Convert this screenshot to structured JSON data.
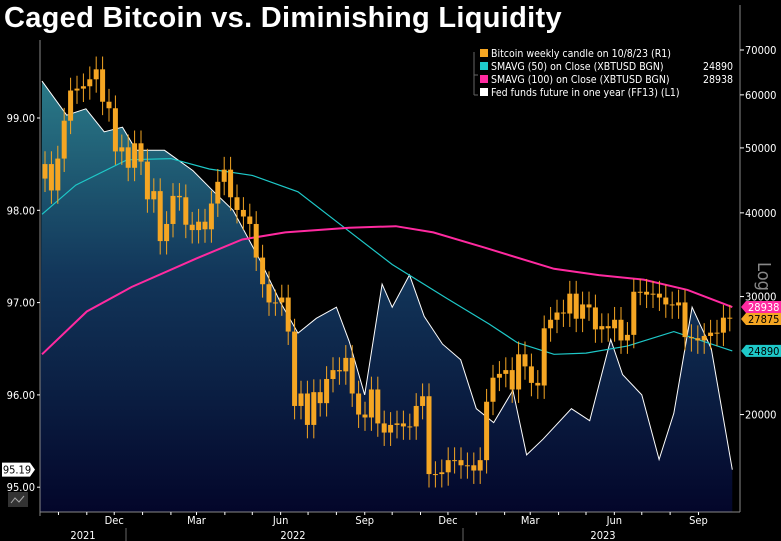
{
  "chart_data": {
    "type": "line",
    "title": "Caged Bitcoin vs. Diminishing Liquidity",
    "left_axis": {
      "ticks": [
        "99.00",
        "98.00",
        "97.00",
        "96.00",
        "95.00"
      ],
      "range": [
        94.7,
        99.85
      ],
      "last_value": "95.19"
    },
    "right_axis": {
      "scale": "log",
      "label": "Log",
      "ticks": [
        "70000",
        "60000",
        "50000",
        "40000",
        "30000",
        "20000"
      ],
      "range": [
        13500,
        74000
      ]
    },
    "x_axis": {
      "months": [
        {
          "label": "Dec",
          "date": "2021-12-01"
        },
        {
          "label": "Mar",
          "date": "2022-03-01"
        },
        {
          "label": "Jun",
          "date": "2022-06-01"
        },
        {
          "label": "Sep",
          "date": "2022-09-01"
        },
        {
          "label": "Dec",
          "date": "2022-12-01"
        },
        {
          "label": "Mar",
          "date": "2023-03-01"
        },
        {
          "label": "Jun",
          "date": "2023-06-01"
        },
        {
          "label": "Sep",
          "date": "2023-09-01"
        }
      ],
      "years": [
        "2021",
        "2022",
        "2023"
      ]
    },
    "legend": {
      "placement": "top-right",
      "items": [
        {
          "label": "Bitcoin weekly candle on 10/8/23 (R1)",
          "value": "",
          "color": "#f5a623"
        },
        {
          "label": "SMAVG (50)  on Close (XBTUSD BGN)",
          "value": "24890",
          "color": "#1ec8c8"
        },
        {
          "label": "SMAVG (100)  on Close (XBTUSD BGN)",
          "value": "28938",
          "color": "#ff2aa0"
        },
        {
          "label": "Fed funds future in one year (FF13) (L1)",
          "value": "",
          "color": "#ffffff"
        }
      ]
    },
    "right_labels": [
      {
        "value": "28938",
        "color": "#ff2aa0"
      },
      {
        "value": "27875",
        "color": "#f5a623"
      },
      {
        "value": "24890",
        "color": "#1ec8c8"
      }
    ],
    "bitcoin": {
      "start_week": "2021-09-13",
      "first_open": 45000,
      "closes": [
        47300,
        43200,
        48200,
        54900,
        60900,
        61300,
        61800,
        63300,
        65500,
        58600,
        57300,
        49400,
        50100,
        46700,
        50800,
        47700,
        41900,
        43100,
        36300,
        38500,
        42400,
        42200,
        38400,
        37700,
        38800,
        37800,
        41300,
        44500,
        46400,
        42200,
        40400,
        39500,
        38500,
        34300,
        31300,
        29400,
        29400,
        29900,
        26600,
        20600,
        21500,
        19300,
        21600,
        20800,
        22600,
        23300,
        23200,
        24300,
        21500,
        20000,
        19800,
        21800,
        19400,
        18800,
        19300,
        19400,
        19200,
        19200,
        20600,
        21300,
        16300,
        16300,
        16400,
        17100,
        17100,
        16800,
        16800,
        16500,
        17100,
        20900,
        22700,
        23000,
        23300,
        21800,
        24600,
        23600,
        22300,
        22100,
        26900,
        27700,
        28400,
        28300,
        30300,
        27800,
        29200,
        28900,
        26800,
        27100,
        26900,
        27700,
        25800,
        26300,
        30500,
        30500,
        30200,
        30300,
        29900,
        29200,
        29100,
        29400,
        26100,
        26000,
        25800,
        26200,
        26500,
        26500,
        27900,
        27875
      ]
    },
    "sma50": [
      [
        "2021-09-13",
        39800
      ],
      [
        "2021-10-20",
        44000
      ],
      [
        "2021-12-15",
        48000
      ],
      [
        "2022-02-01",
        48200
      ],
      [
        "2022-03-15",
        46500
      ],
      [
        "2022-05-01",
        45500
      ],
      [
        "2022-06-20",
        43000
      ],
      [
        "2022-08-10",
        38000
      ],
      [
        "2022-10-01",
        33500
      ],
      [
        "2022-11-30",
        29800
      ],
      [
        "2023-01-15",
        27300
      ],
      [
        "2023-02-15",
        25600
      ],
      [
        "2023-03-27",
        24600
      ],
      [
        "2023-05-01",
        24700
      ],
      [
        "2023-06-15",
        25300
      ],
      [
        "2023-08-05",
        26600
      ],
      [
        "2023-10-08",
        24890
      ]
    ],
    "sma100": [
      [
        "2021-09-13",
        24600
      ],
      [
        "2021-11-01",
        28500
      ],
      [
        "2021-12-20",
        31000
      ],
      [
        "2022-03-01",
        34200
      ],
      [
        "2022-04-20",
        36500
      ],
      [
        "2022-06-06",
        37400
      ],
      [
        "2022-08-15",
        38000
      ],
      [
        "2022-10-05",
        38200
      ],
      [
        "2022-11-15",
        37400
      ],
      [
        "2023-01-10",
        35500
      ],
      [
        "2023-03-27",
        33000
      ],
      [
        "2023-05-15",
        32300
      ],
      [
        "2023-07-03",
        31800
      ],
      [
        "2023-08-20",
        30700
      ],
      [
        "2023-10-08",
        28938
      ]
    ],
    "fed_funds": [
      [
        "2021-09-13",
        99.4
      ],
      [
        "2021-10-10",
        99.03
      ],
      [
        "2021-10-31",
        99.1
      ],
      [
        "2021-11-20",
        98.85
      ],
      [
        "2021-12-10",
        98.9
      ],
      [
        "2021-12-25",
        98.65
      ],
      [
        "2022-01-25",
        98.65
      ],
      [
        "2022-02-25",
        98.43
      ],
      [
        "2022-03-20",
        98.2
      ],
      [
        "2022-04-10",
        98.0
      ],
      [
        "2022-05-10",
        97.45
      ],
      [
        "2022-06-01",
        97.0
      ],
      [
        "2022-06-20",
        96.67
      ],
      [
        "2022-07-10",
        96.83
      ],
      [
        "2022-08-01",
        96.95
      ],
      [
        "2022-08-15",
        96.58
      ],
      [
        "2022-09-01",
        96.0
      ],
      [
        "2022-09-20",
        97.2
      ],
      [
        "2022-10-01",
        96.95
      ],
      [
        "2022-10-20",
        97.3
      ],
      [
        "2022-11-05",
        96.85
      ],
      [
        "2022-11-25",
        96.55
      ],
      [
        "2022-12-15",
        96.38
      ],
      [
        "2023-01-01",
        95.85
      ],
      [
        "2023-01-20",
        95.7
      ],
      [
        "2023-02-10",
        96.05
      ],
      [
        "2023-02-25",
        95.35
      ],
      [
        "2023-03-15",
        95.52
      ],
      [
        "2023-04-15",
        95.85
      ],
      [
        "2023-05-05",
        95.72
      ],
      [
        "2023-05-28",
        96.6
      ],
      [
        "2023-06-10",
        96.22
      ],
      [
        "2023-07-01",
        96.0
      ],
      [
        "2023-07-20",
        95.3
      ],
      [
        "2023-08-05",
        95.8
      ],
      [
        "2023-08-25",
        96.95
      ],
      [
        "2023-09-15",
        96.5
      ],
      [
        "2023-10-08",
        95.19
      ]
    ]
  }
}
